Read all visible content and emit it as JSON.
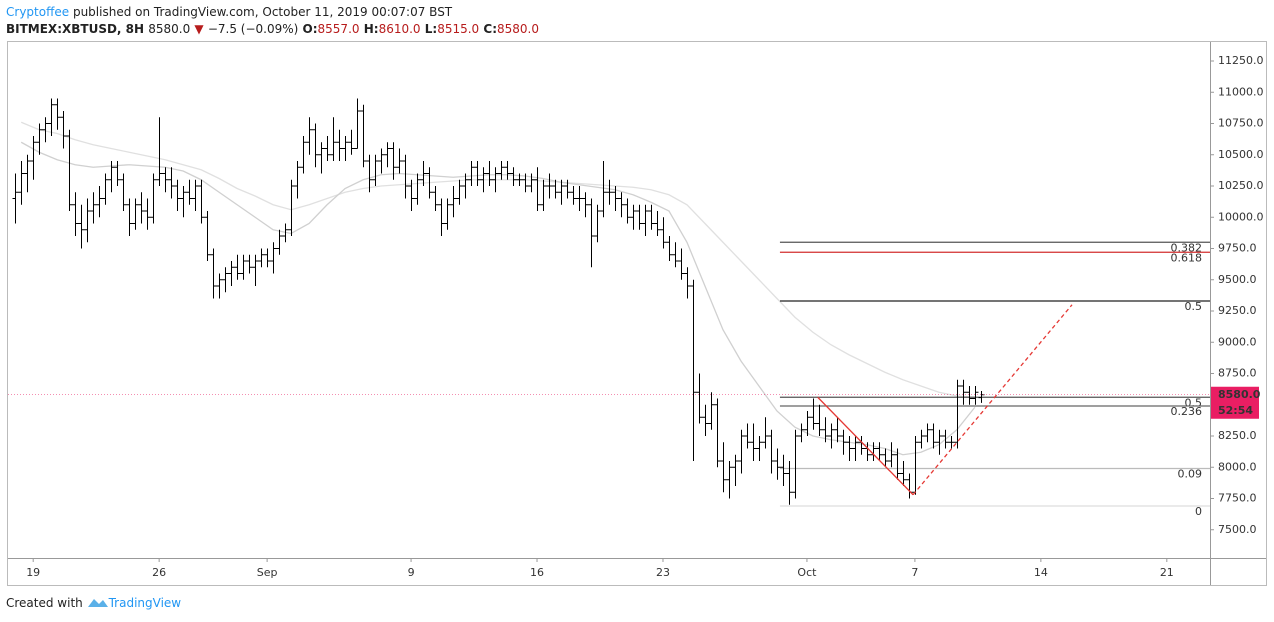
{
  "header": {
    "author": "Cryptoffee",
    "published": "published on TradingView.com, October 11, 2019 00:07:07 BST",
    "symbol": "BITMEX:XBTUSD, 8H",
    "last": "8580.0",
    "arrow": "▼",
    "change": "−7.5 (−0.09%)",
    "o_label": "O:",
    "o": "8557.0",
    "h_label": "H:",
    "h": "8610.0",
    "l_label": "L:",
    "l": "8515.0",
    "c_label": "C:",
    "c": "8580.0"
  },
  "footer": {
    "created": "Created with",
    "brand": "TradingView"
  },
  "chart_data": {
    "type": "ohlc",
    "color": "#000000",
    "xlim": [
      -1.2,
      199.2
    ],
    "ylim": [
      7274,
      11402
    ],
    "xticks": [
      {
        "value": 3,
        "label": "19"
      },
      {
        "value": 24,
        "label": "26"
      },
      {
        "value": 42,
        "label": "Sep"
      },
      {
        "value": 66,
        "label": "9"
      },
      {
        "value": 87,
        "label": "16"
      },
      {
        "value": 108,
        "label": "23"
      },
      {
        "value": 132,
        "label": "Oct"
      },
      {
        "value": 150,
        "label": "7"
      },
      {
        "value": 171,
        "label": "14"
      },
      {
        "value": 192,
        "label": "21"
      }
    ],
    "yticks": [
      {
        "value": 7500,
        "label": "7500.0"
      },
      {
        "value": 7750,
        "label": "7750.0"
      },
      {
        "value": 8000,
        "label": "8000.0"
      },
      {
        "value": 8250,
        "label": "8250.0"
      },
      {
        "value": 8500,
        "label": "8500.0"
      },
      {
        "value": 8750,
        "label": "8750.0"
      },
      {
        "value": 9000,
        "label": "9000.0"
      },
      {
        "value": 9250,
        "label": "9250.0"
      },
      {
        "value": 9500,
        "label": "9500.0"
      },
      {
        "value": 9750,
        "label": "9750.0"
      },
      {
        "value": 10000,
        "label": "10000.0"
      },
      {
        "value": 10250,
        "label": "10250.0"
      },
      {
        "value": 10500,
        "label": "10500.0"
      },
      {
        "value": 10750,
        "label": "10750.0"
      },
      {
        "value": 11000,
        "label": "11000.0"
      },
      {
        "value": 11250,
        "label": "11250.0"
      }
    ],
    "ohlc": [
      [
        10150,
        10350,
        9950,
        10200
      ],
      [
        10200,
        10450,
        10100,
        10350
      ],
      [
        10350,
        10500,
        10200,
        10450
      ],
      [
        10450,
        10650,
        10300,
        10600
      ],
      [
        10600,
        10750,
        10500,
        10700
      ],
      [
        10700,
        10800,
        10600,
        10750
      ],
      [
        10750,
        10950,
        10650,
        10900
      ],
      [
        10900,
        10950,
        10700,
        10800
      ],
      [
        10800,
        10850,
        10550,
        10650
      ],
      [
        10650,
        10700,
        10050,
        10100
      ],
      [
        10100,
        10200,
        9850,
        9950
      ],
      [
        9950,
        10100,
        9750,
        9900
      ],
      [
        9900,
        10150,
        9800,
        10050
      ],
      [
        10050,
        10200,
        9950,
        10100
      ],
      [
        10100,
        10250,
        10000,
        10150
      ],
      [
        10150,
        10350,
        10100,
        10300
      ],
      [
        10300,
        10450,
        10200,
        10400
      ],
      [
        10400,
        10450,
        10250,
        10300
      ],
      [
        10300,
        10350,
        10050,
        10100
      ],
      [
        10100,
        10150,
        9850,
        9950
      ],
      [
        9950,
        10150,
        9900,
        10100
      ],
      [
        10100,
        10200,
        9950,
        10050
      ],
      [
        10050,
        10150,
        9900,
        10000
      ],
      [
        10000,
        10350,
        9950,
        10300
      ],
      [
        10300,
        10800,
        10250,
        10350
      ],
      [
        10350,
        10400,
        10200,
        10300
      ],
      [
        10300,
        10400,
        10150,
        10250
      ],
      [
        10250,
        10300,
        10050,
        10150
      ],
      [
        10150,
        10250,
        10000,
        10200
      ],
      [
        10200,
        10300,
        10100,
        10150
      ],
      [
        10150,
        10300,
        10050,
        10250
      ],
      [
        10250,
        10300,
        9950,
        10000
      ],
      [
        10000,
        10050,
        9650,
        9700
      ],
      [
        9700,
        9750,
        9350,
        9450
      ],
      [
        9450,
        9550,
        9350,
        9500
      ],
      [
        9500,
        9600,
        9400,
        9550
      ],
      [
        9550,
        9650,
        9450,
        9600
      ],
      [
        9600,
        9700,
        9500,
        9550
      ],
      [
        9550,
        9700,
        9500,
        9650
      ],
      [
        9650,
        9700,
        9550,
        9600
      ],
      [
        9600,
        9700,
        9450,
        9650
      ],
      [
        9650,
        9750,
        9600,
        9700
      ],
      [
        9700,
        9750,
        9600,
        9650
      ],
      [
        9650,
        9800,
        9550,
        9750
      ],
      [
        9750,
        9900,
        9700,
        9850
      ],
      [
        9850,
        9950,
        9800,
        9900
      ],
      [
        9900,
        10300,
        9850,
        10250
      ],
      [
        10250,
        10450,
        10150,
        10400
      ],
      [
        10400,
        10650,
        10350,
        10600
      ],
      [
        10600,
        10800,
        10500,
        10700
      ],
      [
        10700,
        10750,
        10400,
        10500
      ],
      [
        10500,
        10600,
        10350,
        10550
      ],
      [
        10550,
        10650,
        10450,
        10500
      ],
      [
        10500,
        10800,
        10450,
        10600
      ],
      [
        10600,
        10700,
        10450,
        10550
      ],
      [
        10550,
        10650,
        10450,
        10600
      ],
      [
        10600,
        10700,
        10500,
        10550
      ],
      [
        10550,
        10950,
        10550,
        10850
      ],
      [
        10850,
        10900,
        10400,
        10450
      ],
      [
        10450,
        10500,
        10200,
        10300
      ],
      [
        10300,
        10500,
        10250,
        10450
      ],
      [
        10450,
        10550,
        10350,
        10500
      ],
      [
        10500,
        10600,
        10400,
        10550
      ],
      [
        10550,
        10600,
        10300,
        10400
      ],
      [
        10400,
        10550,
        10350,
        10450
      ],
      [
        10450,
        10500,
        10150,
        10250
      ],
      [
        10250,
        10300,
        10050,
        10150
      ],
      [
        10150,
        10350,
        10100,
        10300
      ],
      [
        10300,
        10450,
        10250,
        10350
      ],
      [
        10350,
        10400,
        10150,
        10200
      ],
      [
        10200,
        10250,
        10050,
        10100
      ],
      [
        10100,
        10150,
        9850,
        9950
      ],
      [
        9950,
        10150,
        9900,
        10100
      ],
      [
        10100,
        10250,
        10000,
        10150
      ],
      [
        10150,
        10300,
        10100,
        10250
      ],
      [
        10250,
        10350,
        10150,
        10300
      ],
      [
        10300,
        10450,
        10250,
        10400
      ],
      [
        10400,
        10450,
        10250,
        10300
      ],
      [
        10300,
        10400,
        10200,
        10350
      ],
      [
        10350,
        10450,
        10250,
        10300
      ],
      [
        10300,
        10400,
        10200,
        10350
      ],
      [
        10350,
        10450,
        10300,
        10400
      ],
      [
        10400,
        10450,
        10300,
        10350
      ],
      [
        10350,
        10400,
        10250,
        10300
      ],
      [
        10300,
        10350,
        10250,
        10300
      ],
      [
        10300,
        10350,
        10200,
        10250
      ],
      [
        10250,
        10350,
        10200,
        10300
      ],
      [
        10300,
        10400,
        10050,
        10100
      ],
      [
        10100,
        10300,
        10050,
        10250
      ],
      [
        10250,
        10350,
        10150,
        10250
      ],
      [
        10250,
        10300,
        10150,
        10200
      ],
      [
        10200,
        10300,
        10100,
        10250
      ],
      [
        10250,
        10300,
        10150,
        10200
      ],
      [
        10200,
        10250,
        10100,
        10150
      ],
      [
        10150,
        10250,
        10050,
        10150
      ],
      [
        10150,
        10200,
        10000,
        10100
      ],
      [
        10100,
        10150,
        9600,
        9850
      ],
      [
        9850,
        10100,
        9800,
        10050
      ],
      [
        10050,
        10450,
        10000,
        10200
      ],
      [
        10200,
        10300,
        10100,
        10200
      ],
      [
        10200,
        10250,
        10050,
        10150
      ],
      [
        10150,
        10200,
        10000,
        10100
      ],
      [
        10100,
        10150,
        9950,
        10000
      ],
      [
        10000,
        10100,
        9900,
        10050
      ],
      [
        10050,
        10100,
        9900,
        9950
      ],
      [
        9950,
        10100,
        9850,
        10050
      ],
      [
        10050,
        10100,
        9900,
        9950
      ],
      [
        9950,
        10050,
        9850,
        9900
      ],
      [
        9900,
        10000,
        9750,
        9800
      ],
      [
        9800,
        9850,
        9650,
        9700
      ],
      [
        9700,
        9800,
        9600,
        9650
      ],
      [
        9650,
        9750,
        9500,
        9550
      ],
      [
        9550,
        9600,
        9350,
        9450
      ],
      [
        9450,
        9500,
        8050,
        8600
      ],
      [
        8600,
        8750,
        8350,
        8400
      ],
      [
        8400,
        8500,
        8250,
        8350
      ],
      [
        8350,
        8600,
        8300,
        8500
      ],
      [
        8500,
        8550,
        8000,
        8050
      ],
      [
        8050,
        8200,
        7800,
        7900
      ],
      [
        7900,
        8050,
        7750,
        8000
      ],
      [
        8000,
        8100,
        7850,
        8050
      ],
      [
        8050,
        8300,
        7950,
        8250
      ],
      [
        8250,
        8350,
        8150,
        8200
      ],
      [
        8200,
        8350,
        8050,
        8150
      ],
      [
        8150,
        8250,
        8050,
        8200
      ],
      [
        8200,
        8400,
        8150,
        8250
      ],
      [
        8250,
        8300,
        7950,
        8050
      ],
      [
        8050,
        8150,
        7900,
        8000
      ],
      [
        8000,
        8100,
        7850,
        7950
      ],
      [
        7950,
        8050,
        7700,
        7800
      ],
      [
        7800,
        8300,
        7750,
        8250
      ],
      [
        8250,
        8350,
        8200,
        8300
      ],
      [
        8300,
        8450,
        8250,
        8400
      ],
      [
        8400,
        8550,
        8300,
        8350
      ],
      [
        8350,
        8500,
        8250,
        8300
      ],
      [
        8300,
        8400,
        8200,
        8250
      ],
      [
        8250,
        8350,
        8150,
        8300
      ],
      [
        8300,
        8400,
        8200,
        8250
      ],
      [
        8250,
        8300,
        8100,
        8200
      ],
      [
        8200,
        8250,
        8050,
        8150
      ],
      [
        8150,
        8250,
        8050,
        8200
      ],
      [
        8200,
        8250,
        8100,
        8150
      ],
      [
        8150,
        8200,
        8050,
        8100
      ],
      [
        8100,
        8200,
        8050,
        8150
      ],
      [
        8150,
        8200,
        8050,
        8100
      ],
      [
        8100,
        8150,
        8000,
        8050
      ],
      [
        8050,
        8200,
        8000,
        8100
      ],
      [
        8100,
        8150,
        7900,
        7950
      ],
      [
        7950,
        8050,
        7850,
        7900
      ],
      [
        7900,
        7950,
        7750,
        7800
      ],
      [
        7800,
        8250,
        7780,
        8200
      ],
      [
        8200,
        8300,
        8150,
        8250
      ],
      [
        8250,
        8350,
        8200,
        8300
      ],
      [
        8300,
        8350,
        8150,
        8200
      ],
      [
        8200,
        8300,
        8100,
        8250
      ],
      [
        8250,
        8300,
        8150,
        8200
      ],
      [
        8200,
        8250,
        8150,
        8200
      ],
      [
        8200,
        8700,
        8150,
        8650
      ],
      [
        8650,
        8700,
        8500,
        8600
      ],
      [
        8600,
        8650,
        8500,
        8550
      ],
      [
        8550,
        8650,
        8500,
        8600
      ],
      [
        8557,
        8610,
        8515,
        8580
      ]
    ],
    "moving_averages": [
      {
        "color": "#e0e0e0",
        "values": [
          10760,
          10700,
          10670,
          10620,
          10580,
          10550,
          10520,
          10490,
          10460,
          10420,
          10380,
          10310,
          10230,
          10170,
          10100,
          10060,
          10100,
          10150,
          10200,
          10230,
          10250,
          10260,
          10270,
          10280,
          10290,
          10300,
          10300,
          10300,
          10300,
          10290,
          10280,
          10270,
          10260,
          10250,
          10240,
          10220,
          10180,
          10100,
          9950,
          9800,
          9650,
          9500,
          9350,
          9200,
          9080,
          8980,
          8900,
          8830,
          8760,
          8700,
          8650,
          8600,
          8570,
          8560
        ]
      },
      {
        "color": "#d0d0d0",
        "values": [
          10600,
          10520,
          10460,
          10420,
          10400,
          10410,
          10420,
          10410,
          10400,
          10370,
          10300,
          10200,
          10100,
          10000,
          9900,
          9870,
          9950,
          10100,
          10230,
          10300,
          10340,
          10350,
          10340,
          10330,
          10320,
          10330,
          10340,
          10340,
          10330,
          10310,
          10280,
          10260,
          10240,
          10220,
          10180,
          10120,
          10050,
          9800,
          9450,
          9100,
          8850,
          8650,
          8450,
          8320,
          8250,
          8220,
          8200,
          8180,
          8150,
          8100,
          8120,
          8180,
          8300,
          8480
        ]
      }
    ],
    "fib_levels": [
      {
        "value": 9800,
        "label": "0.382",
        "color": "#555555",
        "label_color": "#888888"
      },
      {
        "value": 9720,
        "label": "0.618",
        "color": "#d32f2f",
        "label_color": "#e05050"
      },
      {
        "value": 9330,
        "label": "0.5",
        "color": "#222222",
        "label_color": "#555555"
      },
      {
        "value": 8560,
        "label": "0.5",
        "color": "#555555",
        "label_color": "#777777"
      },
      {
        "value": 8490,
        "label": "0.236",
        "color": "#666666",
        "label_color": "#999999"
      },
      {
        "value": 7990,
        "label": "0.09",
        "color": "#bbbbbb",
        "label_color": "#bbbbbb"
      },
      {
        "value": 7690,
        "label": "0",
        "color": "#dddddd",
        "label_color": "#cccccc"
      }
    ],
    "fib_start": 127.5,
    "trend_lines": [
      {
        "color": "#e53935",
        "dashed": false,
        "x": [
          133.8,
          149.7
        ],
        "values": [
          8560,
          7780
        ]
      },
      {
        "color": "#e53935",
        "dashed": true,
        "x": [
          149.7,
          176.2
        ],
        "values": [
          7780,
          9300
        ]
      }
    ],
    "price_label": {
      "value": 8580,
      "label": "8580.0",
      "countdown": "52:54",
      "color": "#e91e63"
    }
  }
}
